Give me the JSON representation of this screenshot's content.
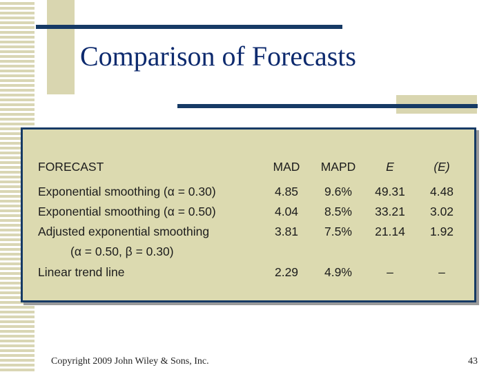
{
  "title": "Comparison of Forecasts",
  "table": {
    "headers": {
      "forecast": "FORECAST",
      "mad": "MAD",
      "mapd": "MAPD",
      "e": "E",
      "e_bar": "(E)"
    },
    "rows": [
      {
        "label": "Exponential smoothing (α = 0.30)",
        "mad": "4.85",
        "mapd": "9.6%",
        "e": "49.31",
        "e_bar": "4.48"
      },
      {
        "label": "Exponential smoothing (α = 0.50)",
        "mad": "4.04",
        "mapd": "8.5%",
        "e": "33.21",
        "e_bar": "3.02"
      },
      {
        "label": "Adjusted exponential smoothing",
        "label_line2": "(α = 0.50, β = 0.30)",
        "mad": "3.81",
        "mapd": "7.5%",
        "e": "21.14",
        "e_bar": "1.92"
      },
      {
        "label": "Linear trend line",
        "mad": "2.29",
        "mapd": "4.9%",
        "e": "–",
        "e_bar": "–"
      }
    ]
  },
  "footer": {
    "copyright": "Copyright 2009 John Wiley & Sons, Inc.",
    "page_number": "43"
  },
  "colors": {
    "accent_navy": "#163a65",
    "panel_tan": "#dcdab0",
    "title_blue": "#0d2a6e"
  }
}
